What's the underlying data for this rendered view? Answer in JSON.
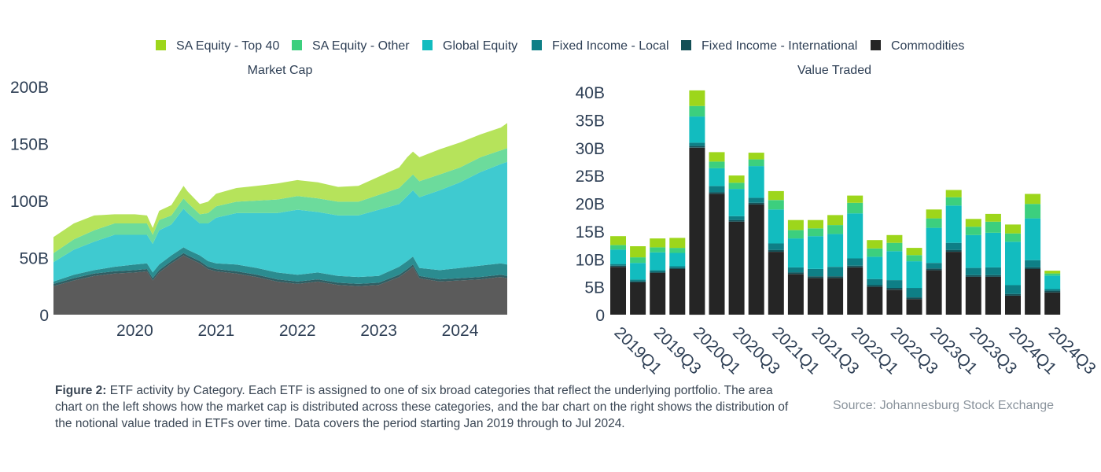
{
  "legend": [
    {
      "name": "SA Equity - Top 40",
      "color": "#9dd61b"
    },
    {
      "name": "SA Equity - Other",
      "color": "#3ccf7e"
    },
    {
      "name": "Global Equity",
      "color": "#12bcbf"
    },
    {
      "name": "Fixed Income - Local",
      "color": "#0e7f86"
    },
    {
      "name": "Fixed Income - International",
      "color": "#134f55"
    },
    {
      "name": "Commodities",
      "color": "#252525"
    }
  ],
  "chart_data": [
    {
      "type": "area",
      "title": "Market Cap",
      "stacked": true,
      "x_ticks": [
        "2020",
        "2021",
        "2022",
        "2023",
        "2024"
      ],
      "y_ticks": [
        "0",
        "50B",
        "100B",
        "150B",
        "200B"
      ],
      "x_range": [
        2019.0,
        2024.58
      ],
      "ylim": [
        0,
        200
      ],
      "unit": "B",
      "x": [
        2019.0,
        2019.25,
        2019.5,
        2019.75,
        2020.0,
        2020.15,
        2020.22,
        2020.3,
        2020.45,
        2020.6,
        2020.65,
        2020.8,
        2020.9,
        2021.0,
        2021.25,
        2021.5,
        2021.75,
        2022.0,
        2022.25,
        2022.5,
        2022.75,
        2023.0,
        2023.25,
        2023.35,
        2023.42,
        2023.5,
        2023.75,
        2024.0,
        2024.25,
        2024.5,
        2024.58
      ],
      "series": [
        {
          "name": "Commodities",
          "values": [
            25,
            30,
            34,
            36,
            37,
            38,
            30,
            37,
            45,
            52,
            50,
            45,
            40,
            38,
            36,
            33,
            29,
            27,
            29,
            26,
            25,
            26,
            33,
            38,
            42,
            32,
            29,
            30,
            31,
            33,
            32
          ]
        },
        {
          "name": "Fixed Income - International",
          "values": [
            2,
            2,
            2,
            2,
            2,
            2,
            2,
            2,
            2,
            2,
            2,
            2,
            2,
            2,
            2,
            2,
            2,
            2,
            2,
            2,
            2,
            2,
            2,
            2,
            2,
            2,
            2,
            2,
            2,
            2,
            2
          ]
        },
        {
          "name": "Fixed Income - Local",
          "values": [
            2,
            3,
            3,
            4,
            5,
            5,
            5,
            5,
            5,
            5,
            5,
            5,
            5,
            5,
            6,
            6,
            6,
            6,
            6,
            6,
            6,
            6,
            7,
            7,
            7,
            7,
            8,
            9,
            10,
            10,
            10
          ]
        },
        {
          "name": "Global Equity",
          "values": [
            17,
            22,
            25,
            28,
            26,
            25,
            25,
            30,
            27,
            34,
            32,
            28,
            33,
            40,
            45,
            48,
            52,
            57,
            53,
            53,
            54,
            58,
            55,
            57,
            58,
            62,
            70,
            75,
            82,
            87,
            90
          ]
        },
        {
          "name": "SA Equity - Other",
          "values": [
            8,
            9,
            10,
            10,
            10,
            10,
            8,
            9,
            8,
            9,
            9,
            8,
            9,
            10,
            10,
            11,
            12,
            12,
            12,
            12,
            12,
            13,
            14,
            14,
            14,
            14,
            14,
            13,
            13,
            12,
            12
          ]
        },
        {
          "name": "SA Equity - Top 40",
          "values": [
            14,
            14,
            13,
            8,
            8,
            7,
            6,
            8,
            9,
            11,
            10,
            9,
            10,
            11,
            12,
            13,
            14,
            14,
            14,
            13,
            14,
            16,
            18,
            20,
            20,
            21,
            22,
            22,
            20,
            20,
            22
          ]
        }
      ]
    },
    {
      "type": "bar",
      "title": "Value Traded",
      "stacked": true,
      "unit": "B",
      "ylim": [
        0,
        40
      ],
      "y_ticks": [
        "0",
        "5B",
        "10B",
        "15B",
        "20B",
        "25B",
        "30B",
        "35B",
        "40B"
      ],
      "categories": [
        "2019Q1",
        "2019Q2",
        "2019Q3",
        "2019Q4",
        "2020Q1",
        "2020Q2",
        "2020Q3",
        "2020Q4",
        "2021Q1",
        "2021Q2",
        "2021Q3",
        "2021Q4",
        "2022Q1",
        "2022Q2",
        "2022Q3",
        "2022Q4",
        "2023Q1",
        "2023Q2",
        "2023Q3",
        "2023Q4",
        "2024Q1",
        "2024Q2",
        "2024Q3"
      ],
      "tick_labels": [
        "2019Q1",
        "2019Q3",
        "2020Q1",
        "2020Q3",
        "2021Q1",
        "2021Q3",
        "2022Q1",
        "2022Q3",
        "2023Q1",
        "2023Q3",
        "2024Q1",
        "2024Q3"
      ],
      "series": [
        {
          "name": "Commodities",
          "values": [
            8.6,
            5.8,
            7.5,
            8.2,
            30.0,
            21.7,
            16.7,
            19.8,
            11.3,
            7.3,
            6.6,
            6.6,
            8.5,
            5.0,
            4.5,
            2.8,
            8.0,
            11.3,
            6.8,
            6.8,
            3.4,
            8.2,
            4.0
          ]
        },
        {
          "name": "Fixed Income - International",
          "values": [
            0.2,
            0.2,
            0.2,
            0.2,
            0.3,
            0.3,
            0.3,
            0.3,
            0.3,
            0.3,
            0.3,
            0.3,
            0.3,
            0.3,
            0.3,
            0.3,
            0.3,
            0.3,
            0.3,
            0.3,
            0.3,
            0.3,
            0.3
          ]
        },
        {
          "name": "Fixed Income - Local",
          "values": [
            0.3,
            0.3,
            0.3,
            0.3,
            0.6,
            1.1,
            0.7,
            0.9,
            1.2,
            0.9,
            1.3,
            1.7,
            1.3,
            1.1,
            1.4,
            1.7,
            1.0,
            1.3,
            1.3,
            1.4,
            1.6,
            1.3,
            0.3
          ]
        },
        {
          "name": "Global Equity",
          "values": [
            2.6,
            3.0,
            3.2,
            2.4,
            4.7,
            3.2,
            4.9,
            5.7,
            6.1,
            5.2,
            5.9,
            5.9,
            8.1,
            4.0,
            5.2,
            4.8,
            6.3,
            6.7,
            5.9,
            6.2,
            7.8,
            7.5,
            2.4
          ]
        },
        {
          "name": "SA Equity - Other",
          "values": [
            0.8,
            1.0,
            0.9,
            0.9,
            1.9,
            1.2,
            1.1,
            1.2,
            1.7,
            1.5,
            1.4,
            1.6,
            1.9,
            1.5,
            1.5,
            1.1,
            1.7,
            1.5,
            1.5,
            2.0,
            1.5,
            2.6,
            0.4
          ]
        },
        {
          "name": "SA Equity - Top 40",
          "values": [
            1.6,
            2.0,
            1.6,
            1.8,
            2.8,
            1.7,
            1.3,
            1.2,
            1.6,
            1.8,
            1.5,
            1.8,
            1.3,
            1.5,
            1.4,
            1.3,
            1.6,
            1.3,
            1.4,
            1.4,
            1.6,
            1.8,
            0.5
          ]
        }
      ]
    }
  ],
  "caption": {
    "label": "Figure 2:",
    "text": " ETF activity by Category. Each ETF is assigned to one of six broad categories that reflect the underlying portfolio. The area chart on the left shows how the market cap is distributed across these categories, and the bar chart on the right shows the distribution of the notional value traded in ETFs over time. Data covers the period starting Jan 2019 through to Jul 2024."
  },
  "source": "Source: Johannesburg Stock Exchange"
}
